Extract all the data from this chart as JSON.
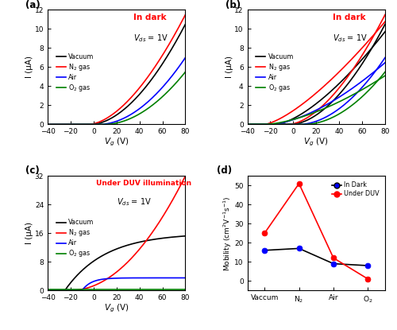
{
  "colors": {
    "vacuum": "black",
    "n2": "red",
    "air": "blue",
    "o2": "green"
  },
  "legend_labels": [
    "Vacuum",
    "N$_2$ gas",
    "Air",
    "O$_2$ gas"
  ],
  "panel_d": {
    "ylabel": "Mobility (cm$^2$V$^{-1}$s$^{-1}$)",
    "xtick_labels": [
      "Vaccum",
      "N$_2$",
      "Air",
      "O$_2$"
    ],
    "dark_values": [
      16,
      17,
      9,
      8
    ],
    "duv_values": [
      25,
      51,
      12,
      1
    ],
    "dark_line_color": "black",
    "dark_marker_color": "blue",
    "duv_line_color": "red",
    "duv_marker_color": "red",
    "ylim": [
      -5,
      55
    ],
    "yticks": [
      0,
      10,
      20,
      30,
      40,
      50
    ]
  }
}
